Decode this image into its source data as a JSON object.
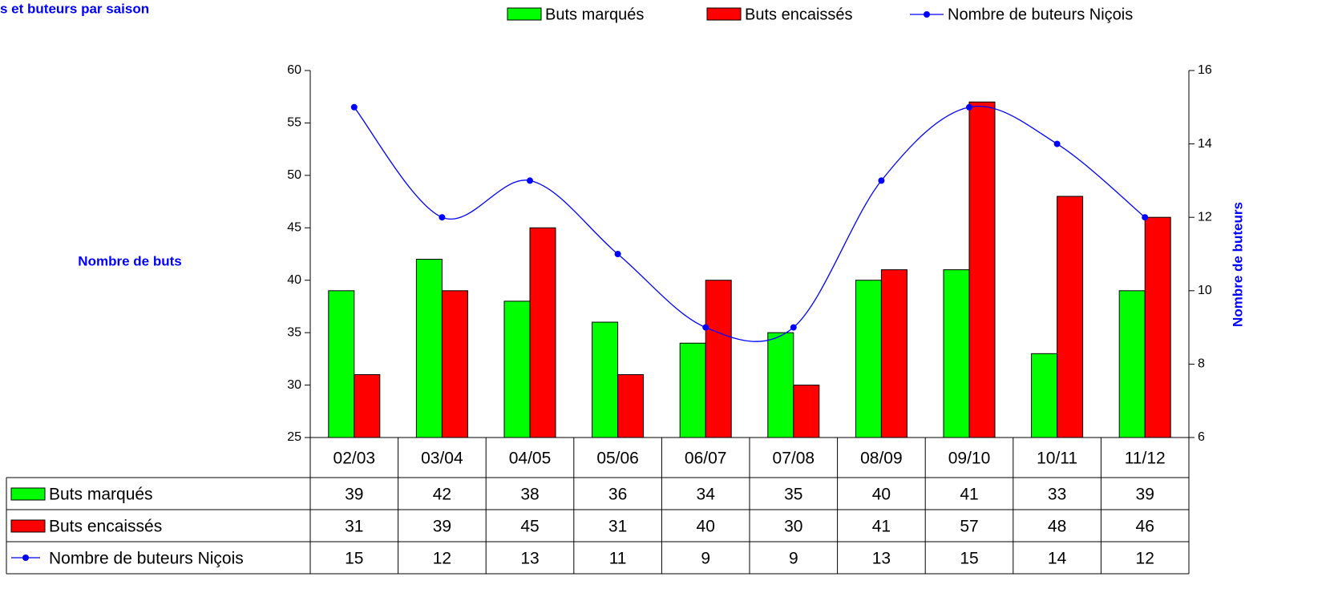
{
  "chart_data": {
    "type": "bar",
    "title": "s et buteurs par saison",
    "y_label": "Nombre de buts",
    "y2_label": "Nombre de buteurs",
    "categories": [
      "02/03",
      "03/04",
      "04/05",
      "05/06",
      "06/07",
      "07/08",
      "08/09",
      "09/10",
      "10/11",
      "11/12"
    ],
    "series": [
      {
        "name": "Buts marqués",
        "color": "#00ff00",
        "values": [
          39,
          42,
          38,
          36,
          34,
          35,
          40,
          41,
          33,
          39
        ]
      },
      {
        "name": "Buts encaissés",
        "color": "#ff0000",
        "values": [
          31,
          39,
          45,
          31,
          40,
          30,
          41,
          57,
          48,
          46
        ]
      },
      {
        "name": "Nombre de buteurs Niçois",
        "color": "#0000ff",
        "type": "line",
        "axis": "y2",
        "values": [
          15,
          12,
          13,
          11,
          9,
          9,
          13,
          15,
          14,
          12
        ]
      }
    ],
    "ylim": [
      25,
      60
    ],
    "yticks": [
      25,
      30,
      35,
      40,
      45,
      50,
      55,
      60
    ],
    "y2lim": [
      6,
      16
    ],
    "y2ticks": [
      6,
      8,
      10,
      12,
      14,
      16
    ],
    "grid": false,
    "data_table": true,
    "legend": "top"
  }
}
